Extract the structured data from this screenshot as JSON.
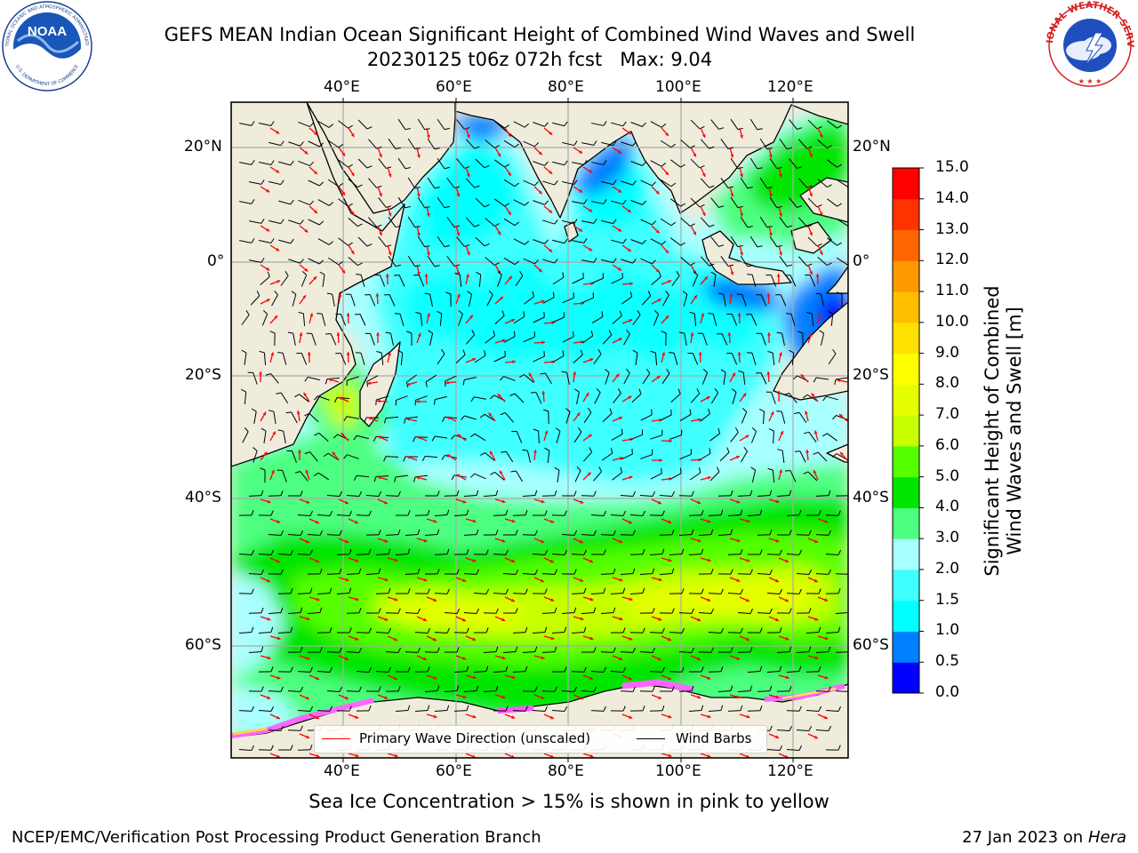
{
  "title": {
    "line1": "GEFS MEAN Indian Ocean Significant Height of Combined Wind Waves and Swell",
    "line2": "20230125 t06z 072h fcst   Max: 9.04"
  },
  "logos": {
    "noaa_text": "NOAA",
    "noaa_ring_top": "NATIONAL OCEANIC AND ATMOSPHERIC ADMINISTRATION",
    "noaa_ring_bottom": "U.S. DEPARTMENT OF COMMERCE",
    "nws_ring": "NATIONAL WEATHER SERVICE"
  },
  "map": {
    "lon_range": [
      20,
      130
    ],
    "lat_range": [
      -74,
      28
    ],
    "lon_ticks": [
      "40°E",
      "60°E",
      "80°E",
      "100°E",
      "120°E"
    ],
    "lat_ticks_left": [
      "20°N",
      "0°",
      "20°S",
      "40°S",
      "60°S"
    ],
    "lat_ticks_right": [
      "20°N",
      "0°",
      "20°S",
      "40°S",
      "60°S"
    ],
    "land_color": "#efecdc",
    "grid": true
  },
  "legend": {
    "wave_direction": "Primary Wave Direction (unscaled)",
    "wind_barbs": "Wind Barbs",
    "wave_color": "#ff0000",
    "barb_color": "#000000"
  },
  "colorbar": {
    "label_line1": "Significant Height of Combined",
    "label_line2": "Wind Waves and Swell [m]",
    "ticks": [
      "0.0",
      "0.5",
      "1.0",
      "1.5",
      "2.0",
      "3.0",
      "4.0",
      "5.0",
      "6.0",
      "7.0",
      "8.0",
      "9.0",
      "10.0",
      "11.0",
      "12.0",
      "13.0",
      "14.0",
      "15.0"
    ],
    "colors": [
      "#0000ff",
      "#0080ff",
      "#00ffff",
      "#40ffff",
      "#a8ffff",
      "#4dff80",
      "#00e600",
      "#55ff00",
      "#c8ff00",
      "#e6ff00",
      "#ffff00",
      "#ffe100",
      "#ffbf00",
      "#ff9900",
      "#ff6600",
      "#ff3300",
      "#ff0000"
    ]
  },
  "subtitle": "Sea Ice Concentration > 15% is shown in pink to yellow",
  "footer": {
    "left": "NCEP/EMC/Verification Post Processing Product Generation Branch",
    "right_date": "27 Jan 2023 on",
    "right_host": "Hera"
  }
}
